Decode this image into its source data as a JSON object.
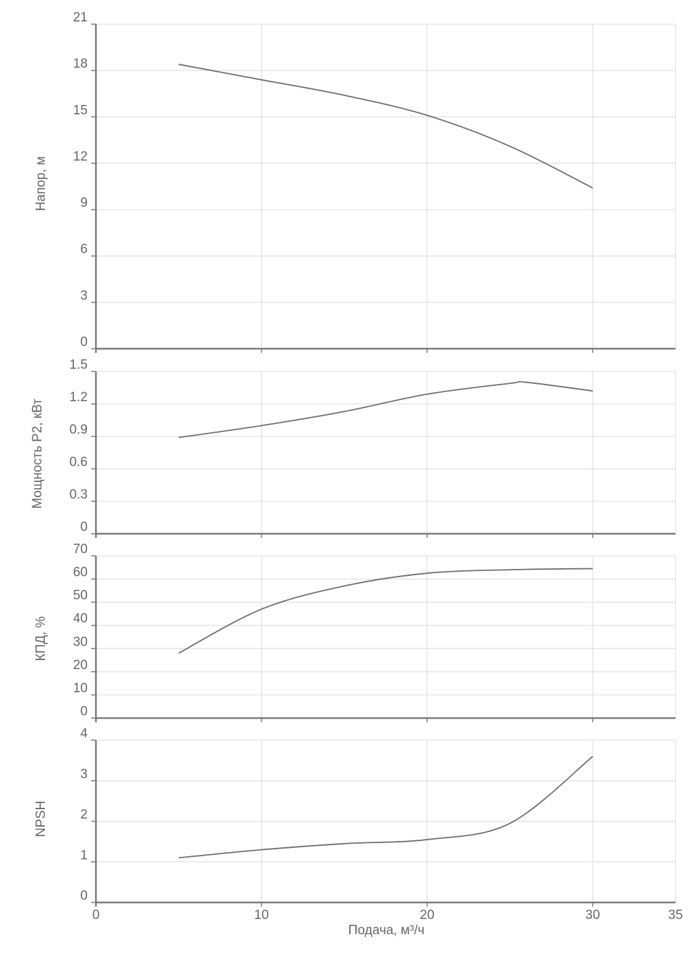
{
  "chart_data": [
    {
      "type": "line",
      "title": "",
      "xlabel": "Подача, м³/ч",
      "ylabel": "Напор, м",
      "xlim": [
        0,
        35
      ],
      "ylim": [
        0,
        21
      ],
      "yticks": [
        "0",
        "3",
        "6",
        "9",
        "12",
        "15",
        "18",
        "21"
      ],
      "grid": true,
      "x": [
        5,
        10,
        15,
        20,
        25,
        30
      ],
      "series": [
        {
          "name": "Напор",
          "values": [
            18.4,
            17.4,
            16.4,
            15.1,
            13.1,
            10.4
          ]
        }
      ]
    },
    {
      "type": "line",
      "title": "",
      "xlabel": "Подача, м³/ч",
      "ylabel": "Мощность P2, кВт",
      "xlim": [
        0,
        35
      ],
      "ylim": [
        0,
        1.5
      ],
      "yticks": [
        "0",
        "0.3",
        "0.6",
        "0.9",
        "1.2",
        "1.5"
      ],
      "grid": true,
      "x": [
        5,
        10,
        15,
        20,
        25,
        26,
        30
      ],
      "series": [
        {
          "name": "Мощность P2",
          "values": [
            0.89,
            1.0,
            1.13,
            1.29,
            1.39,
            1.4,
            1.32
          ]
        }
      ]
    },
    {
      "type": "line",
      "title": "",
      "xlabel": "Подача, м³/ч",
      "ylabel": "КПД, %",
      "xlim": [
        0,
        35
      ],
      "ylim": [
        0,
        70
      ],
      "yticks": [
        "0",
        "10",
        "20",
        "30",
        "40",
        "50",
        "60",
        "70"
      ],
      "grid": true,
      "x": [
        5,
        10,
        15,
        20,
        25,
        30
      ],
      "series": [
        {
          "name": "КПД",
          "values": [
            28,
            47,
            57,
            62.5,
            64,
            64.5
          ]
        }
      ]
    },
    {
      "type": "line",
      "title": "",
      "xlabel": "Подача, м³/ч",
      "ylabel": "NPSH",
      "xlim": [
        0,
        35
      ],
      "ylim": [
        0,
        4
      ],
      "yticks": [
        "0",
        "1",
        "2",
        "3",
        "4"
      ],
      "xticks": [
        "0",
        "10",
        "20",
        "30",
        "35"
      ],
      "grid": true,
      "x": [
        5,
        10,
        15,
        20,
        25,
        30
      ],
      "series": [
        {
          "name": "NPSH",
          "values": [
            1.1,
            1.3,
            1.45,
            1.55,
            1.95,
            3.6
          ]
        }
      ]
    }
  ],
  "labels": {
    "head": "Напор, м",
    "power": "Мощность P2, кВт",
    "eff": "КПД, %",
    "npsh": "NPSH",
    "x": "Подача, м³/ч"
  },
  "colors": {
    "curve": "#6e6e6e",
    "grid": "#e3e5ea",
    "axis": "#7a7a7a",
    "text": "#666666"
  }
}
